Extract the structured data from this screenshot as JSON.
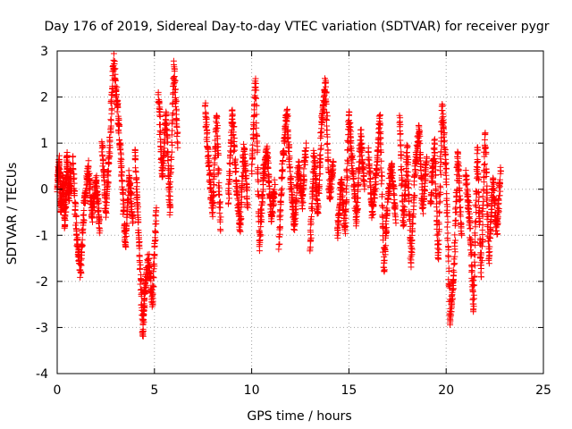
{
  "chart_data": {
    "type": "scatter",
    "title": "Day 176 of 2019, Sidereal Day-to-day VTEC variation (SDTVAR) for receiver pygr",
    "xlabel": "GPS time / hours",
    "ylabel": "SDTVAR / TECUs",
    "xlim": [
      0,
      25
    ],
    "ylim": [
      -4,
      3
    ],
    "x_ticks": [
      0,
      5,
      10,
      15,
      20,
      25
    ],
    "y_ticks": [
      -4,
      -3,
      -2,
      -1,
      0,
      1,
      2,
      3
    ],
    "grid": true,
    "marker": "+",
    "color": "#ff0000",
    "series": [
      {
        "name": "SDTVAR",
        "segments": [
          {
            "x": [
              0.0,
              0.1,
              0.2,
              0.3,
              0.4,
              0.5,
              0.6,
              0.7
            ],
            "y": [
              0.0,
              0.6,
              -0.5,
              0.3,
              -0.8,
              0.7,
              -0.2,
              0.4
            ]
          },
          {
            "x": [
              0.8,
              1.0,
              1.2,
              1.4,
              1.6,
              1.8,
              2.0,
              2.2
            ],
            "y": [
              0.7,
              -1.0,
              -1.8,
              -0.3,
              0.5,
              -0.6,
              0.2,
              -0.9
            ]
          },
          {
            "x": [
              2.3,
              2.5,
              2.7,
              2.9,
              3.1,
              3.3,
              3.5,
              3.7,
              3.9
            ],
            "y": [
              1.0,
              -0.5,
              0.9,
              2.8,
              1.8,
              0.5,
              -1.2,
              0.3,
              -0.7
            ]
          },
          {
            "x": [
              4.0,
              4.2,
              4.4,
              4.5,
              4.7,
              4.9,
              5.1
            ],
            "y": [
              0.8,
              -1.0,
              -3.1,
              -2.2,
              -1.5,
              -2.5,
              -0.4
            ]
          },
          {
            "x": [
              5.2,
              5.4,
              5.6,
              5.8,
              6.0,
              6.2
            ],
            "y": [
              2.1,
              0.3,
              1.6,
              -0.5,
              2.7,
              1.0
            ]
          },
          {
            "x": [
              7.6,
              7.8,
              8.0,
              8.2,
              8.4
            ],
            "y": [
              1.8,
              0.5,
              -0.5,
              1.6,
              -0.9
            ]
          },
          {
            "x": [
              8.8,
              9.0,
              9.2,
              9.4,
              9.6,
              9.8
            ],
            "y": [
              -0.3,
              1.7,
              0.2,
              -0.9,
              0.9,
              -0.4
            ]
          },
          {
            "x": [
              10.0,
              10.2,
              10.4,
              10.6,
              10.8,
              11.0,
              11.2
            ],
            "y": [
              0.4,
              2.4,
              -1.2,
              0.3,
              0.8,
              -0.6,
              0.1
            ]
          },
          {
            "x": [
              11.4,
              11.6,
              11.8,
              12.0,
              12.2,
              12.4,
              12.6,
              12.8
            ],
            "y": [
              -1.2,
              0.6,
              1.7,
              0.2,
              -0.8,
              0.5,
              -0.3,
              1.0
            ]
          },
          {
            "x": [
              13.0,
              13.2,
              13.4,
              13.6,
              13.8,
              14.0,
              14.2
            ],
            "y": [
              -1.3,
              0.7,
              -0.5,
              1.4,
              2.3,
              -0.2,
              0.6
            ]
          },
          {
            "x": [
              14.4,
              14.6,
              14.8,
              15.0,
              15.2,
              15.4,
              15.6,
              15.8
            ],
            "y": [
              -1.0,
              0.2,
              -0.9,
              1.6,
              0.4,
              -0.7,
              1.2,
              0.0
            ]
          },
          {
            "x": [
              16.0,
              16.2,
              16.4,
              16.6,
              16.8,
              17.0,
              17.2,
              17.4
            ],
            "y": [
              0.8,
              -0.5,
              0.3,
              1.6,
              -1.7,
              -0.2,
              0.5,
              -0.6
            ]
          },
          {
            "x": [
              17.6,
              17.8,
              18.0,
              18.2,
              18.4,
              18.6,
              18.8,
              19.0
            ],
            "y": [
              1.6,
              -0.8,
              0.9,
              -1.6,
              0.4,
              1.3,
              -0.4,
              0.7
            ]
          },
          {
            "x": [
              19.2,
              19.4,
              19.6,
              19.8,
              20.0,
              20.2,
              20.4,
              20.6,
              20.8
            ],
            "y": [
              -0.3,
              1.0,
              -1.5,
              1.8,
              0.3,
              -2.9,
              -1.8,
              0.8,
              -1.0
            ]
          },
          {
            "x": [
              21.0,
              21.2,
              21.4,
              21.6,
              21.8,
              22.0,
              22.2,
              22.4,
              22.6,
              22.8
            ],
            "y": [
              0.3,
              -0.6,
              -2.6,
              0.9,
              -1.9,
              1.2,
              -1.5,
              0.2,
              -0.9,
              0.4
            ]
          }
        ]
      }
    ]
  }
}
